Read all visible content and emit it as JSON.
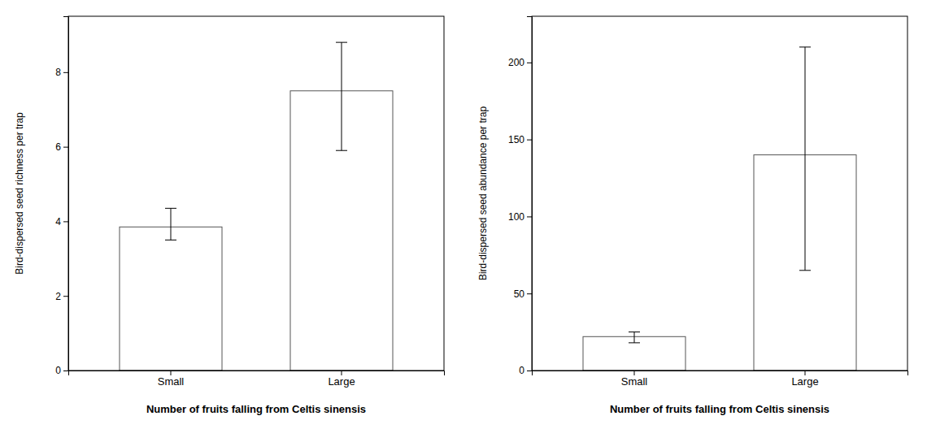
{
  "chart_data": [
    {
      "type": "bar",
      "x_label": "Number of fruits falling from Celtis sinensis",
      "y_label": "Bird-dispersed seed richness per trap",
      "categories": [
        "Small",
        "Large"
      ],
      "values": [
        3.85,
        7.5
      ],
      "error_high": [
        4.35,
        8.8
      ],
      "error_low": [
        3.5,
        5.9
      ],
      "color": "white",
      "ylim": [
        0,
        9.5
      ],
      "yticks": [
        0,
        2,
        4,
        6,
        8
      ],
      "grid": false
    },
    {
      "type": "bar",
      "x_label": "Number of fruits falling from Celtis sinensis",
      "y_label": "Bird-dispersed seed abundance per trap",
      "categories": [
        "Small",
        "Large"
      ],
      "values": [
        22,
        140
      ],
      "error_high": [
        25,
        210
      ],
      "error_low": [
        18,
        65
      ],
      "color": "white",
      "ylim": [
        0,
        230
      ],
      "yticks": [
        0,
        50,
        100,
        150,
        200
      ],
      "grid": false
    }
  ]
}
